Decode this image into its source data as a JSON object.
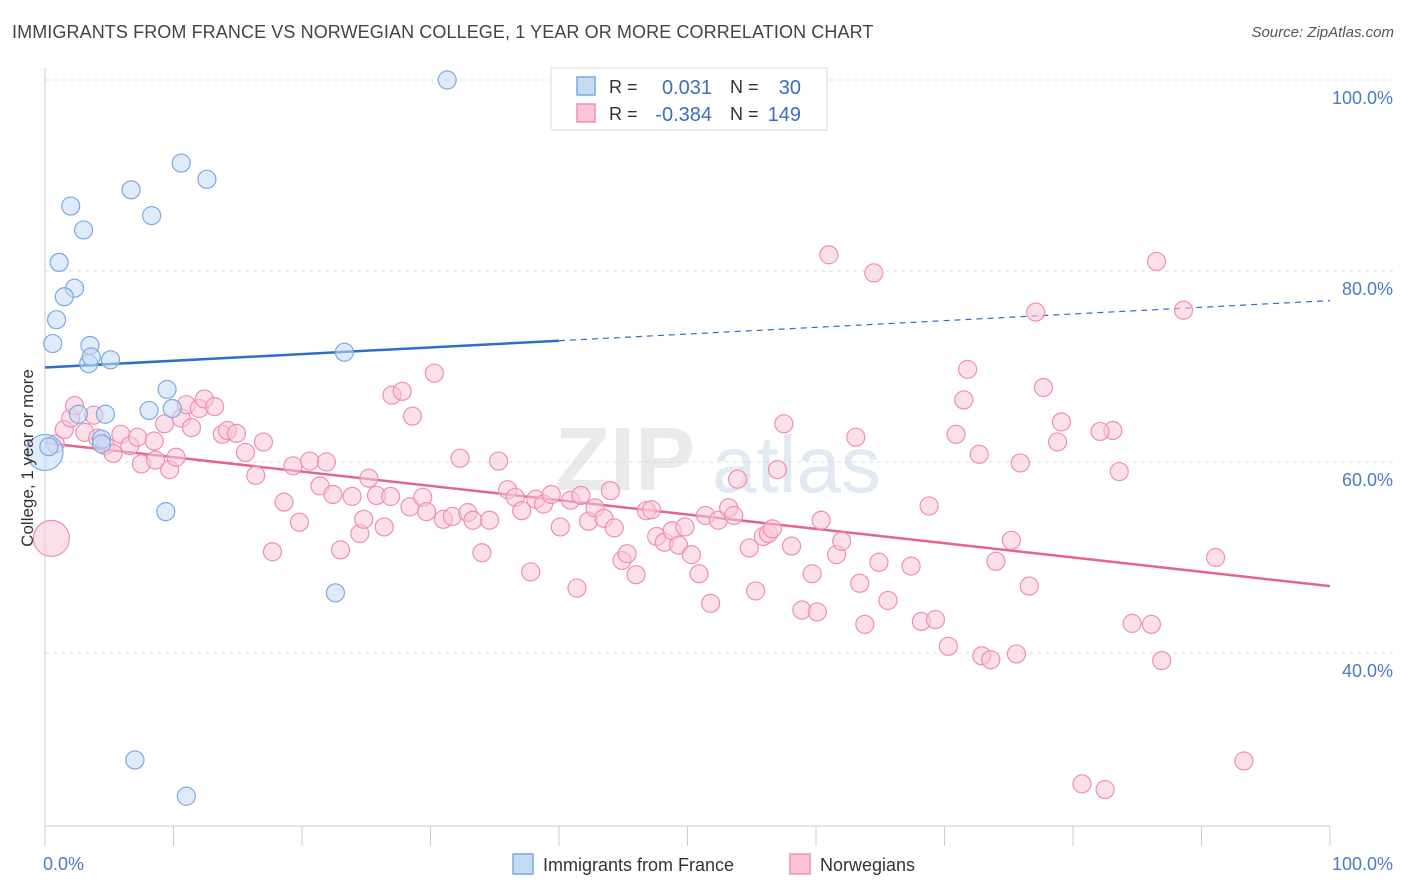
{
  "header": {
    "title": "IMMIGRANTS FROM FRANCE VS NORWEGIAN COLLEGE, 1 YEAR OR MORE CORRELATION CHART",
    "source": "Source: ZipAtlas.com"
  },
  "watermark": {
    "zip": "ZIP",
    "atlas": "atlas"
  },
  "chart_data": {
    "type": "scatter",
    "title": "IMMIGRANTS FROM FRANCE VS NORWEGIAN COLLEGE, 1 YEAR OR MORE CORRELATION CHART",
    "xlabel": "",
    "ylabel": "College, 1 year or more",
    "xlim": [
      0,
      100
    ],
    "ylim": [
      20,
      102
    ],
    "x_tick_labels": [
      {
        "value": 0,
        "label": "0.0%"
      },
      {
        "value": 100,
        "label": "100.0%"
      }
    ],
    "y_tick_labels": [
      {
        "value": 100,
        "label": "100.0%"
      },
      {
        "value": 80,
        "label": "80.0%"
      },
      {
        "value": 60,
        "label": "60.0%"
      },
      {
        "value": 40,
        "label": "40.0%"
      }
    ],
    "grid": true,
    "legend": {
      "placement": "top-center",
      "rows": [
        {
          "r_label": "R =",
          "r_value": "0.031",
          "n_label": "N =",
          "n_value": "30"
        },
        {
          "r_label": "R =",
          "r_value": "-0.384",
          "n_label": "N =",
          "n_value": "149"
        }
      ]
    },
    "series": [
      {
        "name": "Immigrants from France",
        "color": "#7aaae0",
        "fill": "#c5dbf5",
        "trend": {
          "x0": 0,
          "y0": 69.9,
          "x1": 100,
          "y1": 76.9,
          "solid_until": 40
        },
        "points": [
          [
            31.3,
            100.0
          ],
          [
            10.6,
            91.3
          ],
          [
            12.6,
            89.6
          ],
          [
            6.7,
            88.5
          ],
          [
            2.0,
            86.8
          ],
          [
            8.3,
            85.8
          ],
          [
            3.0,
            84.3
          ],
          [
            1.1,
            80.9
          ],
          [
            2.3,
            78.2
          ],
          [
            1.5,
            77.3
          ],
          [
            0.9,
            74.9
          ],
          [
            0.6,
            72.4
          ],
          [
            3.5,
            72.2
          ],
          [
            23.3,
            71.5
          ],
          [
            5.1,
            70.7
          ],
          [
            3.4,
            70.3
          ],
          [
            3.6,
            71.0
          ],
          [
            9.5,
            67.6
          ],
          [
            8.1,
            65.4
          ],
          [
            9.9,
            65.6
          ],
          [
            4.7,
            65.0
          ],
          [
            2.6,
            65.0
          ],
          [
            4.4,
            62.4
          ],
          [
            4.4,
            61.9
          ],
          [
            0.0,
            61.0
          ],
          [
            9.4,
            54.8
          ],
          [
            22.6,
            46.3
          ],
          [
            7.0,
            28.8
          ],
          [
            11.0,
            25.0
          ],
          [
            0.3,
            61.6
          ]
        ],
        "point_sizes": {
          "24": 18
        }
      },
      {
        "name": "Norwegians",
        "color": "#f08fb0",
        "fill": "#f9c6d7",
        "trend": {
          "x0": 0,
          "y0": 62.0,
          "x1": 100,
          "y1": 47.0
        },
        "points": [
          [
            0.5,
            52.0
          ],
          [
            0.8,
            61.9
          ],
          [
            1.5,
            63.4
          ],
          [
            2.0,
            64.6
          ],
          [
            2.3,
            65.9
          ],
          [
            3.1,
            63.1
          ],
          [
            3.8,
            64.9
          ],
          [
            4.1,
            62.5
          ],
          [
            4.7,
            61.7
          ],
          [
            5.3,
            60.9
          ],
          [
            5.9,
            62.9
          ],
          [
            6.6,
            61.7
          ],
          [
            7.2,
            62.6
          ],
          [
            7.5,
            59.8
          ],
          [
            8.6,
            60.2
          ],
          [
            8.5,
            62.2
          ],
          [
            9.3,
            64.0
          ],
          [
            9.7,
            59.2
          ],
          [
            10.2,
            60.5
          ],
          [
            10.6,
            64.6
          ],
          [
            11.0,
            66.0
          ],
          [
            11.4,
            63.6
          ],
          [
            12.0,
            65.6
          ],
          [
            12.4,
            66.6
          ],
          [
            13.2,
            65.8
          ],
          [
            13.8,
            62.9
          ],
          [
            14.2,
            63.3
          ],
          [
            14.9,
            63.0
          ],
          [
            15.6,
            61.0
          ],
          [
            16.4,
            58.6
          ],
          [
            17.0,
            62.1
          ],
          [
            17.7,
            50.6
          ],
          [
            18.6,
            55.8
          ],
          [
            19.3,
            59.6
          ],
          [
            19.8,
            53.7
          ],
          [
            20.6,
            60.1
          ],
          [
            21.4,
            57.5
          ],
          [
            21.9,
            60.0
          ],
          [
            22.4,
            56.6
          ],
          [
            23.0,
            50.8
          ],
          [
            23.9,
            56.4
          ],
          [
            24.5,
            52.5
          ],
          [
            24.8,
            54.0
          ],
          [
            25.2,
            58.3
          ],
          [
            25.8,
            56.5
          ],
          [
            26.4,
            53.2
          ],
          [
            26.9,
            56.4
          ],
          [
            27.0,
            67.0
          ],
          [
            27.8,
            67.4
          ],
          [
            28.4,
            55.3
          ],
          [
            28.6,
            64.8
          ],
          [
            29.4,
            56.3
          ],
          [
            29.7,
            54.8
          ],
          [
            30.3,
            69.3
          ],
          [
            31.0,
            54.0
          ],
          [
            31.7,
            54.3
          ],
          [
            32.3,
            60.4
          ],
          [
            32.9,
            54.7
          ],
          [
            33.3,
            53.9
          ],
          [
            34.0,
            50.5
          ],
          [
            34.6,
            53.9
          ],
          [
            35.3,
            60.1
          ],
          [
            36.0,
            57.1
          ],
          [
            36.6,
            56.3
          ],
          [
            37.1,
            54.9
          ],
          [
            37.8,
            48.5
          ],
          [
            38.2,
            56.1
          ],
          [
            38.8,
            55.6
          ],
          [
            39.4,
            56.6
          ],
          [
            40.1,
            53.2
          ],
          [
            40.9,
            56.0
          ],
          [
            41.4,
            46.8
          ],
          [
            41.7,
            56.5
          ],
          [
            42.3,
            53.8
          ],
          [
            42.8,
            55.2
          ],
          [
            43.5,
            54.1
          ],
          [
            44.0,
            57.0
          ],
          [
            44.3,
            53.1
          ],
          [
            44.9,
            49.7
          ],
          [
            45.3,
            50.4
          ],
          [
            46.0,
            48.2
          ],
          [
            46.8,
            54.9
          ],
          [
            47.2,
            55.0
          ],
          [
            47.6,
            52.2
          ],
          [
            48.2,
            51.6
          ],
          [
            48.8,
            52.8
          ],
          [
            49.3,
            51.3
          ],
          [
            49.8,
            53.2
          ],
          [
            50.3,
            50.3
          ],
          [
            50.9,
            48.3
          ],
          [
            51.4,
            54.4
          ],
          [
            51.8,
            45.2
          ],
          [
            52.4,
            53.9
          ],
          [
            53.2,
            55.2
          ],
          [
            53.6,
            54.4
          ],
          [
            53.9,
            58.2
          ],
          [
            54.8,
            51.0
          ],
          [
            55.3,
            46.5
          ],
          [
            55.9,
            52.2
          ],
          [
            56.3,
            52.5
          ],
          [
            56.6,
            53.0
          ],
          [
            57.0,
            59.2
          ],
          [
            57.5,
            64.0
          ],
          [
            58.1,
            51.2
          ],
          [
            58.9,
            44.5
          ],
          [
            59.7,
            48.3
          ],
          [
            60.1,
            44.3
          ],
          [
            60.4,
            53.9
          ],
          [
            61.0,
            81.7
          ],
          [
            61.6,
            50.3
          ],
          [
            62.0,
            51.7
          ],
          [
            63.1,
            62.6
          ],
          [
            63.4,
            47.3
          ],
          [
            63.8,
            43.0
          ],
          [
            64.5,
            79.8
          ],
          [
            64.9,
            49.5
          ],
          [
            65.6,
            45.5
          ],
          [
            67.4,
            49.1
          ],
          [
            68.2,
            43.3
          ],
          [
            68.8,
            55.4
          ],
          [
            69.3,
            43.5
          ],
          [
            70.3,
            40.7
          ],
          [
            70.9,
            62.9
          ],
          [
            71.5,
            66.5
          ],
          [
            71.8,
            69.7
          ],
          [
            72.7,
            60.8
          ],
          [
            72.9,
            39.7
          ],
          [
            73.6,
            39.3
          ],
          [
            74.0,
            49.6
          ],
          [
            75.2,
            51.8
          ],
          [
            75.6,
            39.9
          ],
          [
            75.9,
            59.9
          ],
          [
            76.6,
            47.0
          ],
          [
            77.1,
            75.7
          ],
          [
            77.7,
            67.8
          ],
          [
            78.8,
            62.1
          ],
          [
            79.1,
            64.2
          ],
          [
            80.7,
            26.3
          ],
          [
            82.5,
            25.7
          ],
          [
            83.1,
            63.3
          ],
          [
            83.6,
            59.0
          ],
          [
            84.6,
            43.1
          ],
          [
            86.1,
            43.0
          ],
          [
            86.5,
            81.0
          ],
          [
            86.9,
            39.2
          ],
          [
            88.6,
            75.9
          ],
          [
            91.1,
            50.0
          ],
          [
            93.3,
            28.7
          ],
          [
            82.1,
            63.2
          ]
        ],
        "point_sizes": {
          "0": 18
        }
      }
    ]
  },
  "bottom_legend": {
    "items": [
      {
        "label": "Immigrants from France"
      },
      {
        "label": "Norwegians"
      }
    ]
  }
}
